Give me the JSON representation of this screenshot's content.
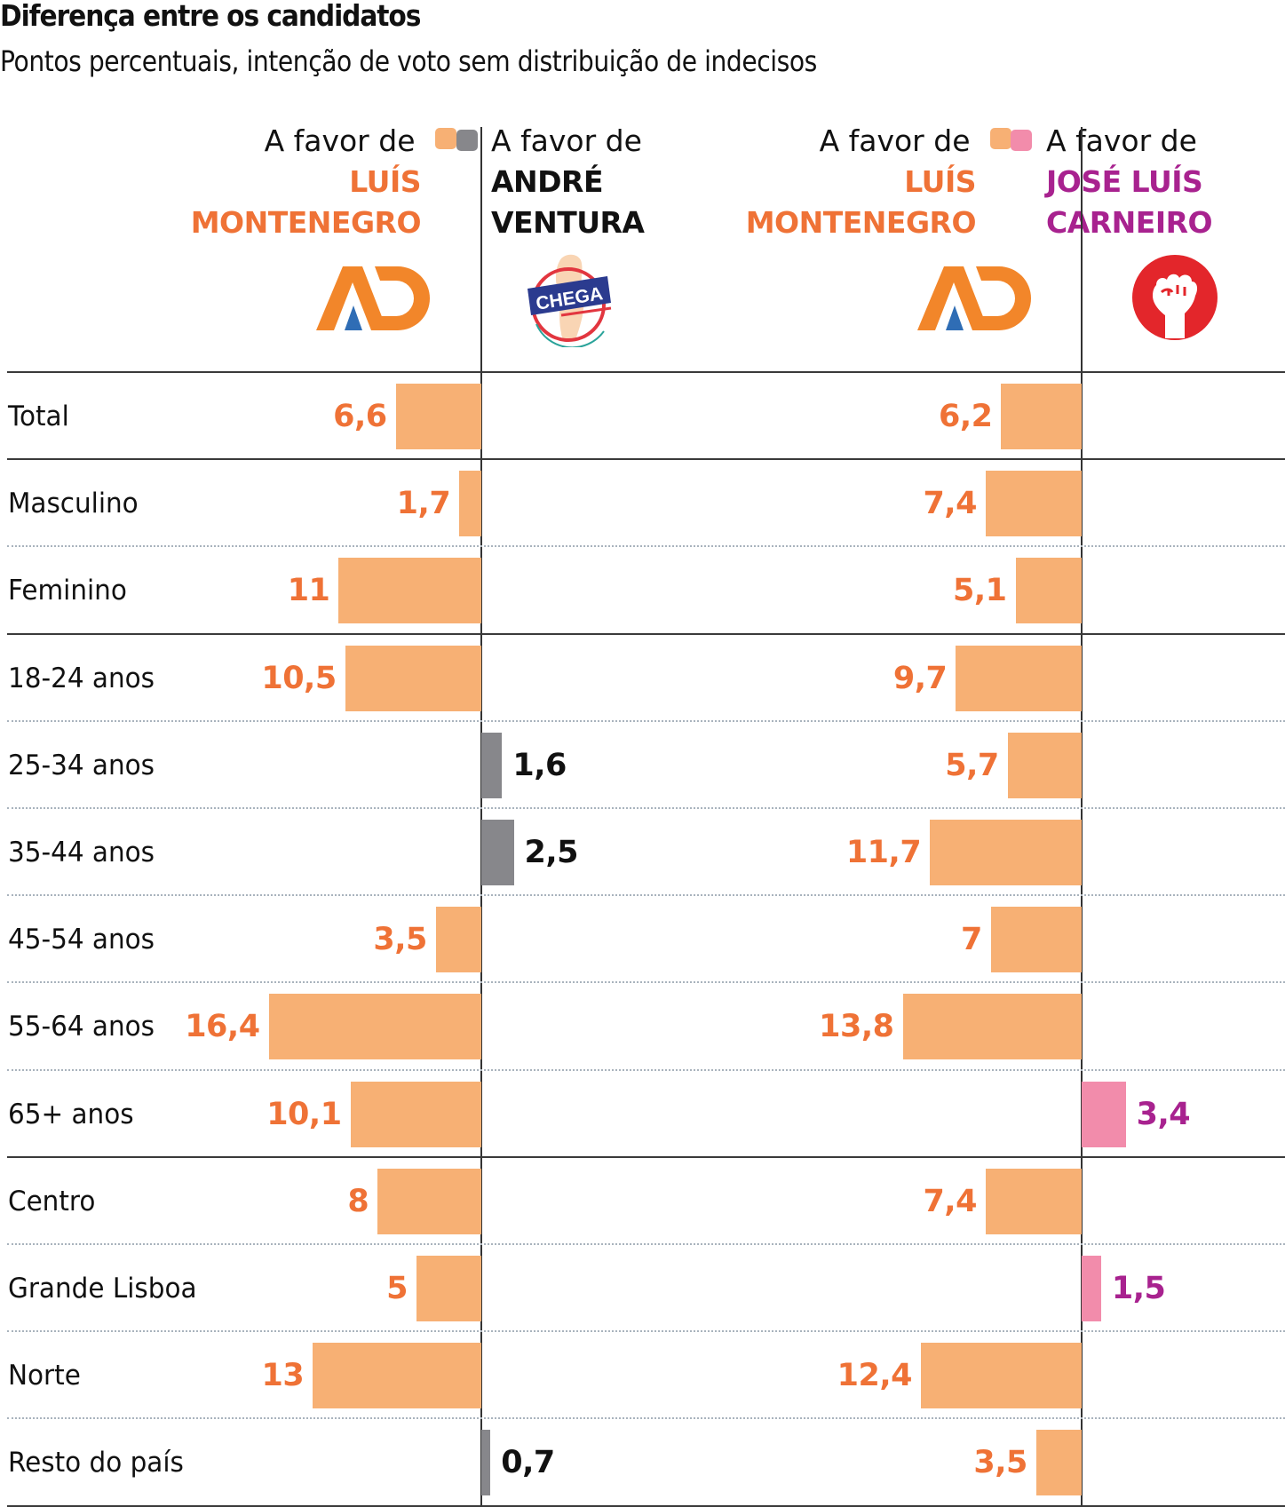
{
  "header": {
    "title": "Diferença entre os candidatos",
    "subtitle": "Pontos percentuais, intenção de voto sem distribuição de indecisos"
  },
  "colors": {
    "montenegro_bar": "#f7b074",
    "montenegro_text": "#ef7236",
    "ventura_bar": "#87878b",
    "ventura_text": "#111111",
    "carneiro_bar": "#f28cab",
    "carneiro_text": "#a8228f"
  },
  "panels": [
    {
      "left": {
        "lead": "A favor de",
        "name_line1": "LUÍS",
        "name_line2": "MONTENEGRO",
        "logo": "ad-logo-icon"
      },
      "right": {
        "lead": "A favor de",
        "name_line1": "ANDRÉ",
        "name_line2": "VENTURA",
        "logo": "chega-logo-icon",
        "logo_text": "CHEGA"
      }
    },
    {
      "left": {
        "lead": "A favor de",
        "name_line1": "LUÍS",
        "name_line2": "MONTENEGRO",
        "logo": "ad-logo-icon"
      },
      "right": {
        "lead": "A favor de",
        "name_line1": "JOSÉ LUÍS",
        "name_line2": "CARNEIRO",
        "logo": "ps-fist-logo-icon"
      }
    }
  ],
  "chart_data": [
    {
      "type": "bar",
      "title": "Luís Montenegro vs André Ventura",
      "categories": [
        "Total",
        "Masculino",
        "Feminino",
        "18-24 anos",
        "25-34 anos",
        "35-44 anos",
        "45-54 anos",
        "55-64 anos",
        "65+ anos",
        "Centro",
        "Grande Lisboa",
        "Norte",
        "Resto do país"
      ],
      "series": [
        {
          "name": "A favor de Luís Montenegro",
          "side": "left",
          "values": [
            6.6,
            1.7,
            11,
            10.5,
            null,
            null,
            3.5,
            16.4,
            10.1,
            8,
            5,
            13,
            null
          ],
          "labels": [
            "6,6",
            "1,7",
            "11",
            "10,5",
            null,
            null,
            "3,5",
            "16,4",
            "10,1",
            "8",
            "5",
            "13",
            null
          ]
        },
        {
          "name": "A favor de André Ventura",
          "side": "right",
          "values": [
            null,
            null,
            null,
            null,
            1.6,
            2.5,
            null,
            null,
            null,
            null,
            null,
            null,
            0.7
          ],
          "labels": [
            null,
            null,
            null,
            null,
            "1,6",
            "2,5",
            null,
            null,
            null,
            null,
            null,
            null,
            "0,7"
          ]
        }
      ],
      "xlabel": "",
      "ylabel": "Pontos percentuais",
      "xlim": [
        0,
        17
      ]
    },
    {
      "type": "bar",
      "title": "Luís Montenegro vs José Luís Carneiro",
      "categories": [
        "Total",
        "Masculino",
        "Feminino",
        "18-24 anos",
        "25-34 anos",
        "35-44 anos",
        "45-54 anos",
        "55-64 anos",
        "65+ anos",
        "Centro",
        "Grande Lisboa",
        "Norte",
        "Resto do país"
      ],
      "series": [
        {
          "name": "A favor de Luís Montenegro",
          "side": "left",
          "values": [
            6.2,
            7.4,
            5.1,
            9.7,
            5.7,
            11.7,
            7,
            13.8,
            null,
            7.4,
            null,
            12.4,
            3.5
          ],
          "labels": [
            "6,2",
            "7,4",
            "5,1",
            "9,7",
            "5,7",
            "11,7",
            "7",
            "13,8",
            null,
            "7,4",
            null,
            "12,4",
            "3,5"
          ]
        },
        {
          "name": "A favor de José Luís Carneiro",
          "side": "right",
          "values": [
            null,
            null,
            null,
            null,
            null,
            null,
            null,
            null,
            3.4,
            null,
            1.5,
            null,
            null
          ],
          "labels": [
            null,
            null,
            null,
            null,
            null,
            null,
            null,
            null,
            "3,4",
            null,
            "1,5",
            null,
            null
          ]
        }
      ],
      "xlabel": "",
      "ylabel": "Pontos percentuais",
      "xlim": [
        0,
        17
      ]
    }
  ]
}
